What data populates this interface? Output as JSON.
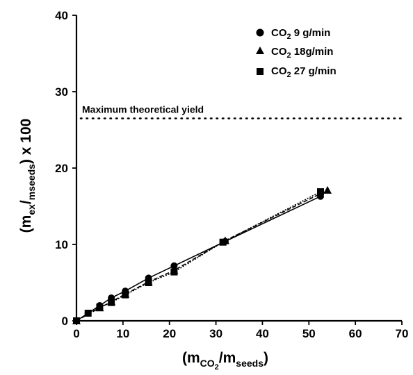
{
  "chart_data": {
    "type": "scatter",
    "xlabel": {
      "main": "(m",
      "sub1": "CO",
      "sub2": "2",
      "mid": "/m",
      "sub3": "seeds",
      "end": ")"
    },
    "ylabel": {
      "main": "(m",
      "sub1": "ex",
      "mid": "/",
      "sub2": "mseeds",
      "end": ") x 100"
    },
    "xlim": [
      0,
      70
    ],
    "ylim": [
      0,
      40
    ],
    "xticks": [
      "0",
      "10",
      "20",
      "30",
      "40",
      "50",
      "60",
      "70"
    ],
    "yticks": [
      "0",
      "10",
      "20",
      "30",
      "40"
    ],
    "grid": false,
    "legend_position": "top-right",
    "reference_line": {
      "label": "Maximum theoretical yield",
      "y": 26.5,
      "style": "dotted"
    },
    "series": [
      {
        "name": {
          "prefix": "CO",
          "sub": "2",
          "suffix": " 9 g/min"
        },
        "marker": "circle",
        "points": [
          [
            0,
            0
          ],
          [
            2.5,
            1.0
          ],
          [
            5,
            2.0
          ],
          [
            7.5,
            3.0
          ],
          [
            10.5,
            3.9
          ],
          [
            15.5,
            5.6
          ],
          [
            21,
            7.2
          ],
          [
            32,
            10.4
          ],
          [
            52.5,
            16.3
          ]
        ]
      },
      {
        "name": {
          "prefix": "CO",
          "sub": "2",
          "suffix": " 18g/min"
        },
        "marker": "triangle",
        "points": [
          [
            0,
            0
          ],
          [
            5,
            1.7
          ],
          [
            7.5,
            2.5
          ],
          [
            10.5,
            3.5
          ],
          [
            15.5,
            5.1
          ],
          [
            21,
            6.6
          ],
          [
            32,
            10.5
          ],
          [
            54,
            17.1
          ]
        ]
      },
      {
        "name": {
          "prefix": "CO",
          "sub": "2",
          "suffix": " 27 g/min"
        },
        "marker": "square",
        "points": [
          [
            0,
            0
          ],
          [
            2.5,
            1.0
          ],
          [
            5,
            1.8
          ],
          [
            7.5,
            2.4
          ],
          [
            10.5,
            3.4
          ],
          [
            15.5,
            5.0
          ],
          [
            21,
            6.4
          ],
          [
            31.5,
            10.3
          ],
          [
            52.5,
            16.9
          ]
        ]
      }
    ]
  }
}
